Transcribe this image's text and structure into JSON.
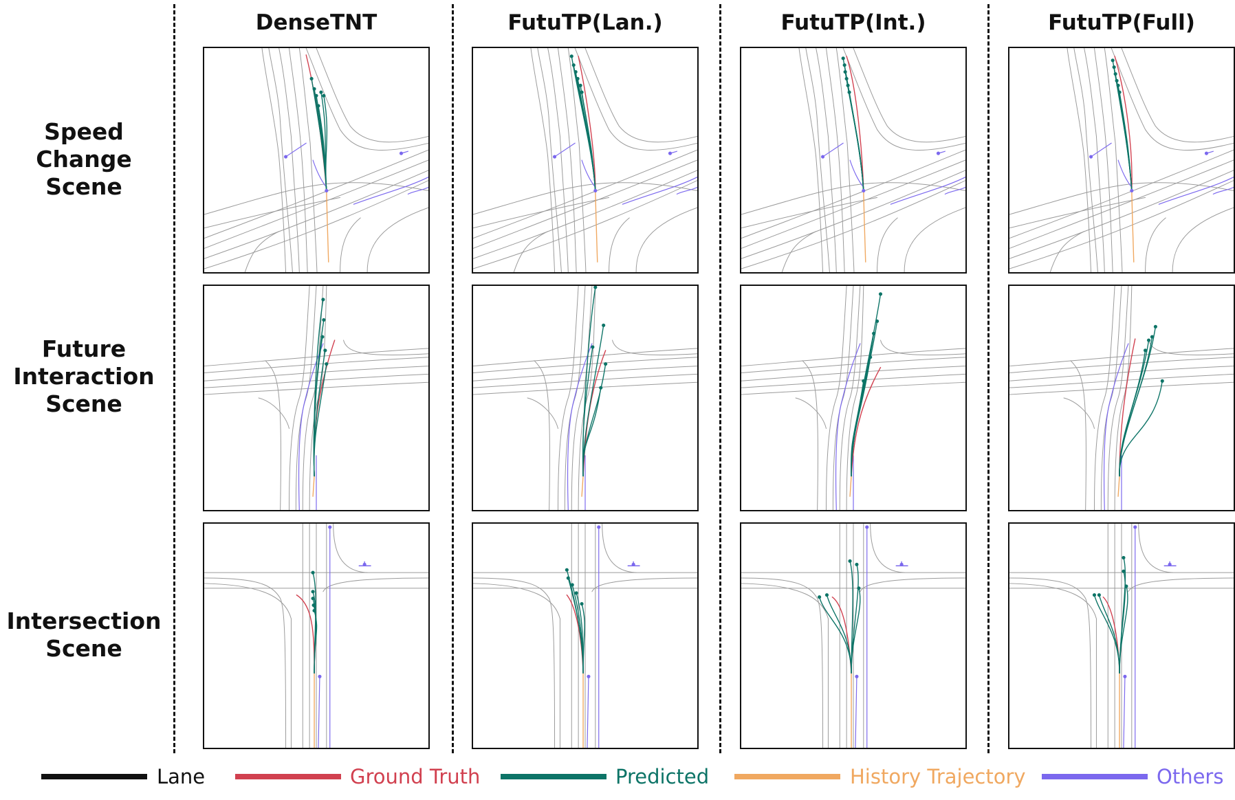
{
  "columns": [
    "DenseTNT",
    "FutuTP(Lan.)",
    "FutuTP(Int.)",
    "FutuTP(Full)"
  ],
  "rows": [
    [
      "Speed",
      "Change",
      "Scene"
    ],
    [
      "Future",
      "Interaction",
      "Scene"
    ],
    [
      "Intersection",
      "Scene"
    ]
  ],
  "legend": [
    {
      "label": "Lane",
      "color": "#111111"
    },
    {
      "label": "Ground Truth",
      "color": "#d1404f"
    },
    {
      "label": "Predicted",
      "color": "#0d7467"
    },
    {
      "label": "History Trajectory",
      "color": "#f0a860"
    },
    {
      "label": "Others",
      "color": "#7b68ee"
    }
  ],
  "colors": {
    "lane": "#9a9a9a",
    "ground_truth": "#d1404f",
    "predicted": "#0d7467",
    "history": "#f0a860",
    "others": "#7b68ee"
  }
}
